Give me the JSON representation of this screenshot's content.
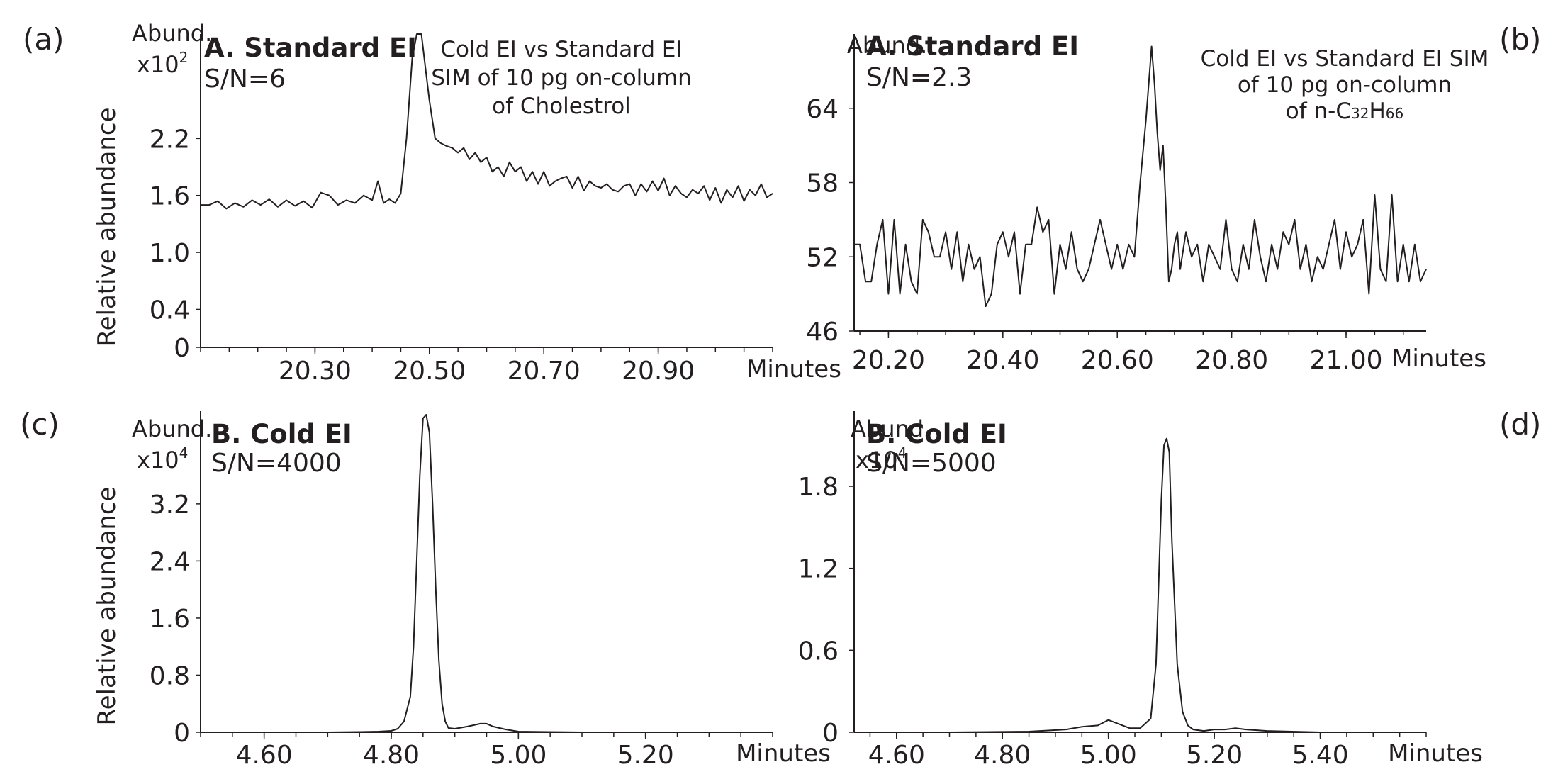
{
  "chart_data": [
    {
      "type": "line",
      "panel_label": "(a)",
      "title": "A. Standard EI",
      "snr": "S/N=6",
      "annotation": [
        "Cold EI vs Standard EI",
        "SIM of 10 pg on-column",
        "of Cholestrol"
      ],
      "ylabel": "Relative abundance",
      "unit_line1": "Abund.",
      "unit_line2_base": "x10",
      "unit_line2_exp": "2",
      "xlabel": "Minutes",
      "xlim": [
        20.1,
        21.1
      ],
      "ylim": [
        0,
        3.3
      ],
      "yticks": [
        0,
        0.4,
        1.0,
        1.6,
        2.2
      ],
      "ytick_labels": [
        "0",
        "0.4",
        "1.0",
        "1.6",
        "2.2"
      ],
      "xticks": [
        20.3,
        20.5,
        20.7,
        20.9
      ],
      "xtick_labels": [
        "20.30",
        "20.50",
        "20.70",
        "20.90"
      ],
      "series": [
        {
          "x": [
            20.1,
            20.115,
            20.13,
            20.145,
            20.16,
            20.175,
            20.19,
            20.205,
            20.22,
            20.235,
            20.25,
            20.265,
            20.28,
            20.295,
            20.31,
            20.325,
            20.34,
            20.355,
            20.37,
            20.385,
            20.4,
            20.41,
            20.42,
            20.43,
            20.44,
            20.45,
            20.46,
            20.47,
            20.478,
            20.486,
            20.492,
            20.5,
            20.51,
            20.52,
            20.53,
            20.54,
            20.55,
            20.56,
            20.57,
            20.58,
            20.59,
            20.6,
            20.61,
            20.62,
            20.63,
            20.64,
            20.65,
            20.66,
            20.67,
            20.68,
            20.69,
            20.7,
            20.71,
            20.72,
            20.73,
            20.74,
            20.75,
            20.76,
            20.77,
            20.78,
            20.79,
            20.8,
            20.81,
            20.82,
            20.83,
            20.84,
            20.85,
            20.86,
            20.87,
            20.88,
            20.89,
            20.9,
            20.91,
            20.92,
            20.93,
            20.94,
            20.95,
            20.96,
            20.97,
            20.98,
            20.99,
            21.0,
            21.01,
            21.02,
            21.03,
            21.04,
            21.05,
            21.06,
            21.07,
            21.08,
            21.09,
            21.1
          ],
          "y": [
            1.5,
            1.5,
            1.54,
            1.46,
            1.52,
            1.48,
            1.55,
            1.5,
            1.56,
            1.48,
            1.55,
            1.49,
            1.54,
            1.47,
            1.63,
            1.6,
            1.5,
            1.55,
            1.52,
            1.6,
            1.55,
            1.75,
            1.52,
            1.56,
            1.52,
            1.62,
            2.2,
            3.05,
            3.3,
            3.3,
            3.0,
            2.6,
            2.2,
            2.15,
            2.12,
            2.1,
            2.05,
            2.1,
            1.98,
            2.05,
            1.95,
            2.0,
            1.85,
            1.9,
            1.8,
            1.95,
            1.85,
            1.9,
            1.75,
            1.85,
            1.72,
            1.85,
            1.7,
            1.75,
            1.78,
            1.8,
            1.68,
            1.8,
            1.65,
            1.75,
            1.7,
            1.68,
            1.72,
            1.66,
            1.64,
            1.7,
            1.72,
            1.6,
            1.72,
            1.64,
            1.75,
            1.65,
            1.78,
            1.6,
            1.7,
            1.62,
            1.58,
            1.66,
            1.62,
            1.7,
            1.55,
            1.68,
            1.52,
            1.66,
            1.58,
            1.7,
            1.54,
            1.66,
            1.6,
            1.72,
            1.58,
            1.62
          ]
        }
      ]
    },
    {
      "type": "line",
      "panel_label": "(b)",
      "title": "A. Standard EI",
      "snr": "S/N=2.3",
      "annotation": [
        "Cold EI vs Standard EI SIM",
        "of 10 pg on-column",
        "of n-C32H66"
      ],
      "annotation_formula": {
        "prefix": "of n-C",
        "sub1": "32",
        "mid": "H",
        "sub2": "66"
      },
      "ylabel": "",
      "unit_line1": "Abund.",
      "unit_line2_base": "",
      "unit_line2_exp": "",
      "xlabel": "Minutes",
      "xlim": [
        20.14,
        21.14
      ],
      "ylim": [
        46,
        70
      ],
      "yticks": [
        46,
        52,
        58,
        64
      ],
      "ytick_labels": [
        "46",
        "52",
        "58",
        "64"
      ],
      "xticks": [
        20.2,
        20.4,
        20.6,
        20.8,
        21.0
      ],
      "xtick_labels": [
        "20.20",
        "20.40",
        "20.60",
        "20.80",
        "21.00"
      ],
      "series": [
        {
          "x": [
            20.14,
            20.15,
            20.16,
            20.17,
            20.18,
            20.19,
            20.2,
            20.21,
            20.22,
            20.23,
            20.24,
            20.25,
            20.26,
            20.27,
            20.28,
            20.29,
            20.3,
            20.31,
            20.32,
            20.33,
            20.34,
            20.35,
            20.36,
            20.37,
            20.38,
            20.39,
            20.4,
            20.41,
            20.42,
            20.43,
            20.44,
            20.45,
            20.46,
            20.47,
            20.48,
            20.49,
            20.5,
            20.51,
            20.52,
            20.53,
            20.54,
            20.55,
            20.56,
            20.57,
            20.58,
            20.59,
            20.6,
            20.61,
            20.62,
            20.63,
            20.64,
            20.65,
            20.66,
            20.665,
            20.67,
            20.675,
            20.68,
            20.685,
            20.69,
            20.695,
            20.7,
            20.705,
            20.71,
            20.72,
            20.73,
            20.74,
            20.75,
            20.76,
            20.77,
            20.78,
            20.79,
            20.8,
            20.81,
            20.82,
            20.83,
            20.84,
            20.85,
            20.86,
            20.87,
            20.88,
            20.89,
            20.9,
            20.91,
            20.92,
            20.93,
            20.94,
            20.95,
            20.96,
            20.97,
            20.98,
            20.99,
            21.0,
            21.01,
            21.02,
            21.03,
            21.04,
            21.05,
            21.06,
            21.07,
            21.08,
            21.09,
            21.1,
            21.11,
            21.12,
            21.13,
            21.14
          ],
          "y": [
            53,
            53,
            50,
            50,
            53,
            55,
            49,
            55,
            49,
            53,
            50,
            49,
            55,
            54,
            52,
            52,
            54,
            51,
            54,
            50,
            53,
            51,
            52,
            48,
            49,
            53,
            54,
            52,
            54,
            49,
            53,
            53,
            56,
            54,
            55,
            49,
            53,
            51,
            54,
            51,
            50,
            51,
            53,
            55,
            53,
            51,
            53,
            51,
            53,
            52,
            58,
            63,
            69,
            66,
            62,
            59,
            61,
            56,
            50,
            51,
            53,
            54,
            51,
            54,
            52,
            53,
            50,
            53,
            52,
            51,
            55,
            51,
            50,
            53,
            51,
            55,
            52,
            50,
            53,
            51,
            54,
            53,
            55,
            51,
            53,
            50,
            52,
            51,
            53,
            55,
            51,
            54,
            52,
            53,
            55,
            49,
            57,
            51,
            50,
            57,
            50,
            53,
            50,
            53,
            50,
            51
          ]
        }
      ]
    },
    {
      "type": "line",
      "panel_label": "(c)",
      "title": "B. Cold EI",
      "snr": "S/N=4000",
      "annotation": [],
      "ylabel": "Relative abundance",
      "unit_line1": "Abund.",
      "unit_line2_base": "x10",
      "unit_line2_exp": "4",
      "xlabel": "Minutes",
      "xlim": [
        4.5,
        5.4
      ],
      "ylim": [
        0,
        4.5
      ],
      "yticks": [
        0,
        0.8,
        1.6,
        2.4,
        3.2
      ],
      "ytick_labels": [
        "0",
        "0.8",
        "1.6",
        "2.4",
        "3.2"
      ],
      "xticks": [
        4.6,
        4.8,
        5.0,
        5.2
      ],
      "xtick_labels": [
        "4.60",
        "4.80",
        "5.00",
        "5.20"
      ],
      "series": [
        {
          "x": [
            4.5,
            4.6,
            4.7,
            4.75,
            4.78,
            4.8,
            4.81,
            4.82,
            4.83,
            4.835,
            4.84,
            4.845,
            4.85,
            4.855,
            4.86,
            4.865,
            4.87,
            4.875,
            4.88,
            4.885,
            4.89,
            4.9,
            4.92,
            4.94,
            4.95,
            4.96,
            4.98,
            5.0,
            5.1,
            5.2,
            5.3,
            5.4
          ],
          "y": [
            0,
            0,
            0,
            0.005,
            0.01,
            0.02,
            0.05,
            0.15,
            0.5,
            1.2,
            2.4,
            3.6,
            4.4,
            4.45,
            4.2,
            3.2,
            2.0,
            1.0,
            0.4,
            0.15,
            0.06,
            0.05,
            0.08,
            0.12,
            0.12,
            0.08,
            0.04,
            0.01,
            0,
            0,
            0,
            0
          ]
        }
      ]
    },
    {
      "type": "line",
      "panel_label": "(d)",
      "title": "B. Cold EI",
      "snr": "S/N=5000",
      "annotation": [],
      "ylabel": "",
      "unit_line1": "Abund.",
      "unit_line2_base": "x10",
      "unit_line2_exp": "4",
      "xlabel": "Minutes",
      "xlim": [
        4.52,
        5.6
      ],
      "ylim": [
        0,
        2.35
      ],
      "yticks": [
        0,
        0.6,
        1.2,
        1.8
      ],
      "ytick_labels": [
        "0",
        "0.6",
        "1.2",
        "1.8"
      ],
      "xticks": [
        4.6,
        4.8,
        5.0,
        5.2,
        5.4
      ],
      "xtick_labels": [
        "4.60",
        "4.80",
        "5.00",
        "5.20",
        "5.40"
      ],
      "series": [
        {
          "x": [
            4.52,
            4.7,
            4.85,
            4.92,
            4.95,
            4.98,
            5.0,
            5.02,
            5.04,
            5.06,
            5.08,
            5.09,
            5.1,
            5.105,
            5.11,
            5.115,
            5.12,
            5.13,
            5.14,
            5.15,
            5.16,
            5.18,
            5.2,
            5.22,
            5.24,
            5.26,
            5.3,
            5.4,
            5.5,
            5.6
          ],
          "y": [
            0,
            0,
            0.005,
            0.02,
            0.04,
            0.05,
            0.09,
            0.06,
            0.03,
            0.03,
            0.1,
            0.5,
            1.7,
            2.1,
            2.15,
            2.05,
            1.4,
            0.5,
            0.15,
            0.05,
            0.02,
            0.01,
            0.02,
            0.02,
            0.03,
            0.02,
            0.01,
            0,
            0,
            0
          ]
        }
      ]
    }
  ]
}
